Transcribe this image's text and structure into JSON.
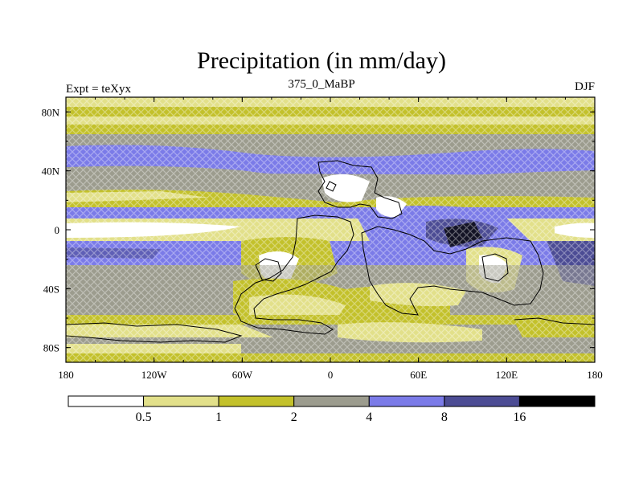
{
  "title": "Precipitation (in mm/day)",
  "left_label": "Expt = teXyx",
  "center_label": "375_0_MaBP",
  "right_label": "DJF",
  "x_ticks": [
    "180",
    "120W",
    "60W",
    "0",
    "60E",
    "120E",
    "180"
  ],
  "y_ticks": [
    "80N",
    "40N",
    "0",
    "40S",
    "80S"
  ],
  "colorbar": {
    "colors": [
      "#ffffff",
      "#e2e08a",
      "#c3c12b",
      "#9c9c8e",
      "#7b7be8",
      "#4c4c94",
      "#000000"
    ],
    "labels": [
      "0.5",
      "1",
      "2",
      "4",
      "8",
      "16"
    ]
  }
}
